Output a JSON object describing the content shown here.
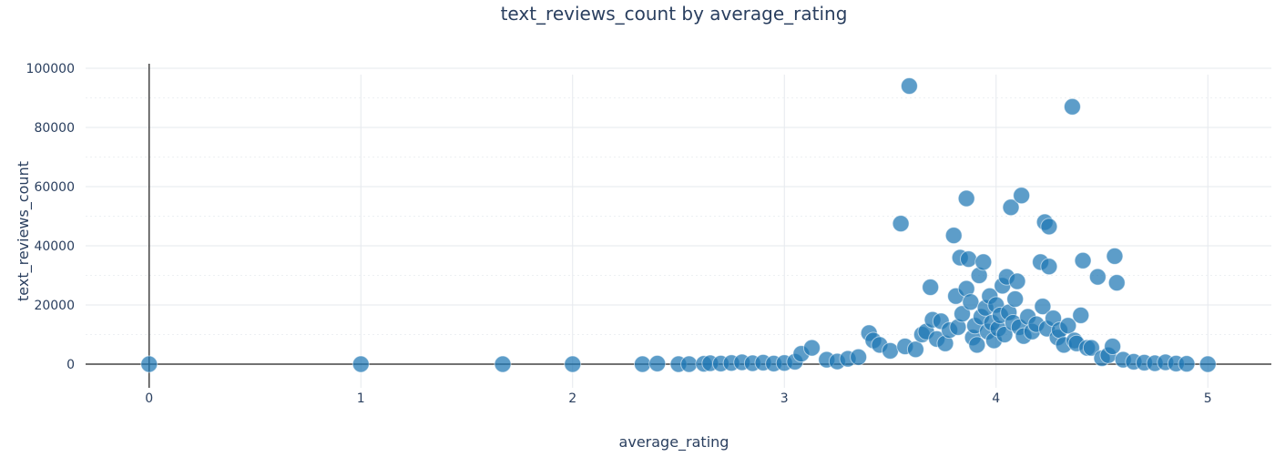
{
  "chart_data": {
    "type": "scatter",
    "title": "text_reviews_count by average_rating",
    "xlabel": "average_rating",
    "ylabel": "text_reviews_count",
    "xlim": [
      -0.3,
      5.3
    ],
    "ylim": [
      -8000,
      104000
    ],
    "xticks": [
      0,
      1,
      2,
      3,
      4,
      5
    ],
    "yticks": [
      0,
      20000,
      40000,
      60000,
      80000,
      100000
    ],
    "ytick_labels": [
      "0",
      "20000",
      "40000",
      "60000",
      "80000",
      "100000"
    ],
    "grid": true,
    "marker_color": "#1f77b4",
    "points": [
      {
        "x": 0,
        "y": 0
      },
      {
        "x": 1,
        "y": 0
      },
      {
        "x": 1.67,
        "y": 0
      },
      {
        "x": 2,
        "y": 0
      },
      {
        "x": 2.33,
        "y": 0
      },
      {
        "x": 2.4,
        "y": 200
      },
      {
        "x": 2.5,
        "y": 0
      },
      {
        "x": 2.55,
        "y": 0
      },
      {
        "x": 2.62,
        "y": 100
      },
      {
        "x": 2.65,
        "y": 300
      },
      {
        "x": 2.7,
        "y": 200
      },
      {
        "x": 2.75,
        "y": 400
      },
      {
        "x": 2.8,
        "y": 600
      },
      {
        "x": 2.85,
        "y": 300
      },
      {
        "x": 2.9,
        "y": 500
      },
      {
        "x": 2.95,
        "y": 200
      },
      {
        "x": 3.0,
        "y": 400
      },
      {
        "x": 3.05,
        "y": 800
      },
      {
        "x": 3.08,
        "y": 3500
      },
      {
        "x": 3.13,
        "y": 5500
      },
      {
        "x": 3.2,
        "y": 1500
      },
      {
        "x": 3.25,
        "y": 900
      },
      {
        "x": 3.3,
        "y": 1800
      },
      {
        "x": 3.35,
        "y": 2400
      },
      {
        "x": 3.4,
        "y": 10500
      },
      {
        "x": 3.42,
        "y": 8000
      },
      {
        "x": 3.45,
        "y": 6500
      },
      {
        "x": 3.5,
        "y": 4500
      },
      {
        "x": 3.55,
        "y": 47500
      },
      {
        "x": 3.57,
        "y": 6000
      },
      {
        "x": 3.59,
        "y": 94000
      },
      {
        "x": 3.62,
        "y": 5000
      },
      {
        "x": 3.65,
        "y": 10000
      },
      {
        "x": 3.67,
        "y": 11000
      },
      {
        "x": 3.69,
        "y": 26000
      },
      {
        "x": 3.7,
        "y": 15000
      },
      {
        "x": 3.72,
        "y": 8500
      },
      {
        "x": 3.74,
        "y": 14500
      },
      {
        "x": 3.76,
        "y": 7000
      },
      {
        "x": 3.78,
        "y": 11500
      },
      {
        "x": 3.8,
        "y": 43500
      },
      {
        "x": 3.81,
        "y": 23000
      },
      {
        "x": 3.82,
        "y": 12500
      },
      {
        "x": 3.83,
        "y": 36000
      },
      {
        "x": 3.84,
        "y": 17000
      },
      {
        "x": 3.86,
        "y": 56000
      },
      {
        "x": 3.86,
        "y": 25500
      },
      {
        "x": 3.87,
        "y": 35500
      },
      {
        "x": 3.88,
        "y": 21000
      },
      {
        "x": 3.89,
        "y": 9000
      },
      {
        "x": 3.9,
        "y": 13000
      },
      {
        "x": 3.91,
        "y": 6500
      },
      {
        "x": 3.92,
        "y": 30000
      },
      {
        "x": 3.93,
        "y": 16000
      },
      {
        "x": 3.94,
        "y": 34500
      },
      {
        "x": 3.95,
        "y": 19000
      },
      {
        "x": 3.96,
        "y": 11000
      },
      {
        "x": 3.97,
        "y": 23000
      },
      {
        "x": 3.98,
        "y": 14000
      },
      {
        "x": 3.99,
        "y": 8000
      },
      {
        "x": 4.0,
        "y": 20000
      },
      {
        "x": 4.01,
        "y": 12000
      },
      {
        "x": 4.02,
        "y": 16500
      },
      {
        "x": 4.03,
        "y": 26500
      },
      {
        "x": 4.04,
        "y": 10000
      },
      {
        "x": 4.05,
        "y": 29500
      },
      {
        "x": 4.06,
        "y": 17500
      },
      {
        "x": 4.07,
        "y": 53000
      },
      {
        "x": 4.08,
        "y": 14000
      },
      {
        "x": 4.09,
        "y": 22000
      },
      {
        "x": 4.1,
        "y": 28000
      },
      {
        "x": 4.11,
        "y": 12500
      },
      {
        "x": 4.12,
        "y": 57000
      },
      {
        "x": 4.13,
        "y": 9500
      },
      {
        "x": 4.15,
        "y": 16000
      },
      {
        "x": 4.17,
        "y": 11000
      },
      {
        "x": 4.19,
        "y": 13500
      },
      {
        "x": 4.21,
        "y": 34500
      },
      {
        "x": 4.22,
        "y": 19500
      },
      {
        "x": 4.23,
        "y": 48000
      },
      {
        "x": 4.24,
        "y": 12000
      },
      {
        "x": 4.25,
        "y": 46500
      },
      {
        "x": 4.25,
        "y": 33000
      },
      {
        "x": 4.27,
        "y": 15500
      },
      {
        "x": 4.29,
        "y": 9000
      },
      {
        "x": 4.3,
        "y": 11500
      },
      {
        "x": 4.32,
        "y": 6500
      },
      {
        "x": 4.34,
        "y": 13000
      },
      {
        "x": 4.36,
        "y": 87000
      },
      {
        "x": 4.37,
        "y": 8000
      },
      {
        "x": 4.38,
        "y": 7000
      },
      {
        "x": 4.4,
        "y": 16500
      },
      {
        "x": 4.41,
        "y": 35000
      },
      {
        "x": 4.43,
        "y": 5500
      },
      {
        "x": 4.45,
        "y": 5500
      },
      {
        "x": 4.48,
        "y": 29500
      },
      {
        "x": 4.5,
        "y": 2000
      },
      {
        "x": 4.53,
        "y": 3000
      },
      {
        "x": 4.55,
        "y": 6000
      },
      {
        "x": 4.56,
        "y": 36500
      },
      {
        "x": 4.57,
        "y": 27500
      },
      {
        "x": 4.6,
        "y": 1500
      },
      {
        "x": 4.65,
        "y": 800
      },
      {
        "x": 4.7,
        "y": 500
      },
      {
        "x": 4.75,
        "y": 300
      },
      {
        "x": 4.8,
        "y": 600
      },
      {
        "x": 4.85,
        "y": 200
      },
      {
        "x": 4.9,
        "y": 100
      },
      {
        "x": 5,
        "y": 0
      }
    ]
  }
}
